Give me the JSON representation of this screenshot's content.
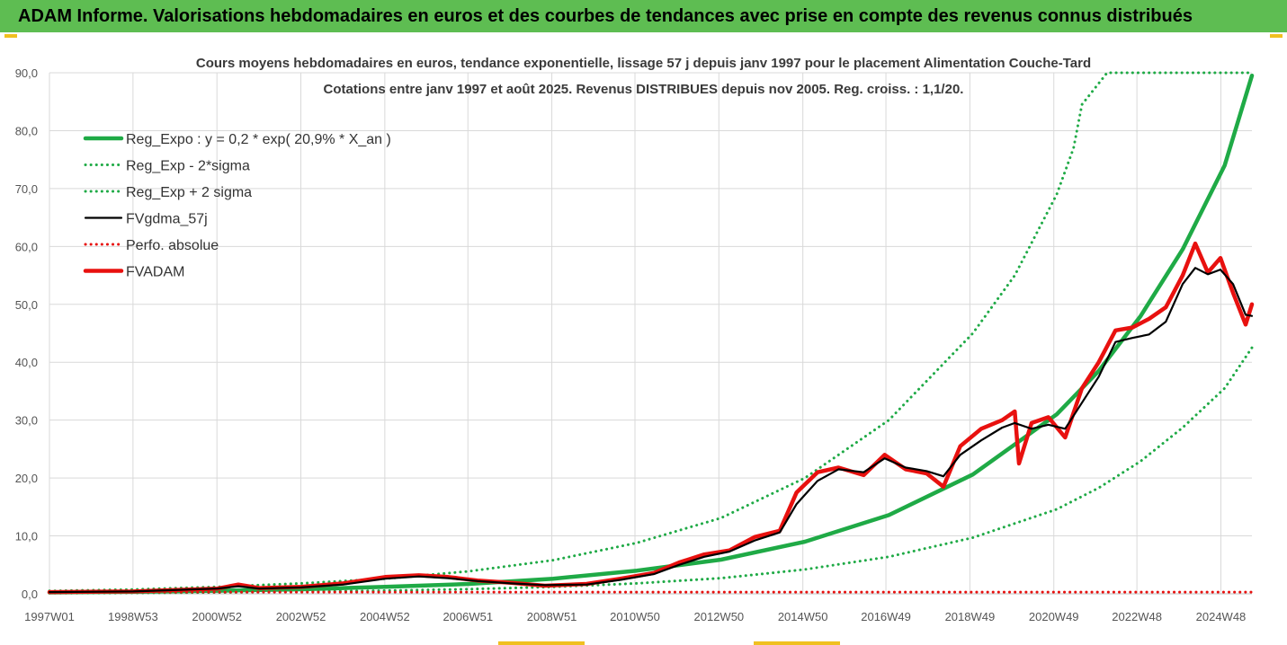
{
  "banner": {
    "text": "ADAM Informe. Valorisations hebdomadaires en euros et des courbes de tendances avec prise en compte des revenus connus distribués"
  },
  "colors": {
    "banner_bg": "#5ebd52",
    "reg_expo": "#1faa46",
    "fvgdma": "#000000",
    "fvadam": "#e8110f",
    "perfo": "#e8110f",
    "grid": "#d9d9d9"
  },
  "chart_data": {
    "type": "line",
    "title": "Cours moyens hebdomadaires en euros, tendance exponentielle, lissage 57 j depuis janv 1997 pour le placement Alimentation Couche-Tard",
    "subtitle": "Cotations entre janv 1997 et août 2025. Revenus DISTRIBUES depuis nov 2005. Reg. croiss. : 1,1/20.",
    "xlabel": "",
    "ylabel": "",
    "x_range": [
      1997.0,
      2025.65
    ],
    "ylim": [
      0,
      90
    ],
    "y_ticks": [
      "0,0",
      "10,0",
      "20,0",
      "30,0",
      "40,0",
      "50,0",
      "60,0",
      "70,0",
      "80,0",
      "90,0"
    ],
    "x_ticks": [
      {
        "label": "1997W01",
        "x": 1997.0
      },
      {
        "label": "1998W53",
        "x": 1998.99
      },
      {
        "label": "2000W52",
        "x": 2000.99
      },
      {
        "label": "2002W52",
        "x": 2002.99
      },
      {
        "label": "2004W52",
        "x": 2004.99
      },
      {
        "label": "2006W51",
        "x": 2006.97
      },
      {
        "label": "2008W51",
        "x": 2008.97
      },
      {
        "label": "2010W50",
        "x": 2010.95
      },
      {
        "label": "2012W50",
        "x": 2012.95
      },
      {
        "label": "2014W50",
        "x": 2014.95
      },
      {
        "label": "2016W49",
        "x": 2016.93
      },
      {
        "label": "2018W49",
        "x": 2018.93
      },
      {
        "label": "2020W49",
        "x": 2020.93
      },
      {
        "label": "2022W48",
        "x": 2022.91
      },
      {
        "label": "2024W48",
        "x": 2024.91
      }
    ],
    "grid": true,
    "legend_position": "top-left",
    "series": [
      {
        "name": "Reg_Expo : y = 0,2 * exp( 20,9% *  X_an )",
        "style": "solid-thick",
        "color": "#1faa46",
        "x": [
          1997.0,
          1999.0,
          2001.0,
          2003.0,
          2005.0,
          2007.0,
          2009.0,
          2011.0,
          2013.0,
          2015.0,
          2017.0,
          2019.0,
          2021.0,
          2022.0,
          2023.0,
          2024.0,
          2025.0,
          2025.65
        ],
        "y": [
          0.23,
          0.35,
          0.52,
          0.78,
          1.2,
          1.7,
          2.6,
          4.0,
          5.9,
          9.0,
          13.6,
          20.6,
          31.0,
          38.5,
          48.0,
          59.5,
          74.0,
          89.5
        ]
      },
      {
        "name": "Reg_Exp - 2*sigma",
        "style": "dotted",
        "color": "#1faa46",
        "x": [
          1997.0,
          1999.0,
          2001.0,
          2003.0,
          2005.0,
          2007.0,
          2009.0,
          2011.0,
          2013.0,
          2015.0,
          2017.0,
          2019.0,
          2021.0,
          2022.0,
          2023.0,
          2024.0,
          2025.0,
          2025.65
        ],
        "y": [
          0.11,
          0.16,
          0.24,
          0.36,
          0.54,
          0.8,
          1.2,
          1.8,
          2.7,
          4.2,
          6.4,
          9.7,
          14.6,
          18.3,
          22.9,
          28.7,
          35.5,
          42.5
        ]
      },
      {
        "name": "Reg_Exp + 2 sigma",
        "style": "dotted",
        "color": "#1faa46",
        "x": [
          1997.0,
          1999.0,
          2001.0,
          2003.0,
          2005.0,
          2007.0,
          2009.0,
          2011.0,
          2013.0,
          2015.0,
          2017.0,
          2019.0,
          2020.0,
          2021.0,
          2021.4,
          2021.6,
          2022.2,
          2025.65
        ],
        "y": [
          0.5,
          0.75,
          1.2,
          1.8,
          2.6,
          3.9,
          5.8,
          8.8,
          13.1,
          20.0,
          30.0,
          45.0,
          55.0,
          69.0,
          77.0,
          84.5,
          90.0,
          90.0
        ]
      },
      {
        "name": "FVgdma_57j",
        "style": "solid",
        "color": "#000000",
        "x": [
          1997.0,
          1999.0,
          2001.0,
          2001.5,
          2002.0,
          2003.0,
          2004.0,
          2005.0,
          2005.8,
          2006.5,
          2007.2,
          2008.0,
          2008.8,
          2009.8,
          2010.6,
          2011.4,
          2012.0,
          2012.6,
          2013.2,
          2013.8,
          2014.4,
          2014.8,
          2015.3,
          2015.8,
          2016.4,
          2016.9,
          2017.4,
          2017.9,
          2018.3,
          2018.7,
          2019.2,
          2019.7,
          2020.0,
          2020.4,
          2020.8,
          2021.2,
          2021.6,
          2022.0,
          2022.4,
          2022.8,
          2023.2,
          2023.6,
          2024.0,
          2024.3,
          2024.6,
          2024.9,
          2025.2,
          2025.5,
          2025.65
        ],
        "y": [
          0.3,
          0.4,
          0.9,
          1.3,
          0.9,
          1.1,
          1.6,
          2.6,
          3.0,
          2.7,
          2.2,
          1.8,
          1.5,
          1.6,
          2.4,
          3.4,
          5.0,
          6.4,
          7.3,
          9.2,
          10.6,
          15.5,
          19.5,
          21.5,
          21.0,
          23.4,
          21.8,
          21.2,
          20.3,
          24.0,
          26.5,
          28.7,
          29.5,
          28.5,
          29.2,
          28.5,
          33.0,
          37.5,
          43.5,
          44.2,
          44.8,
          47.0,
          53.5,
          56.3,
          55.2,
          56.0,
          53.5,
          48.2,
          48.0
        ]
      },
      {
        "name": "Perfo. absolue",
        "style": "dotted",
        "color": "#e8110f",
        "x": [
          1997.0,
          2025.65
        ],
        "y": [
          0.3,
          0.3
        ]
      },
      {
        "name": "FVADAM",
        "style": "solid-thick",
        "color": "#e8110f",
        "x": [
          1997.0,
          1999.0,
          2001.0,
          2001.5,
          2002.0,
          2003.0,
          2004.0,
          2005.0,
          2005.8,
          2006.5,
          2007.2,
          2008.0,
          2008.8,
          2009.8,
          2010.6,
          2011.4,
          2012.0,
          2012.6,
          2013.2,
          2013.8,
          2014.4,
          2014.8,
          2015.3,
          2015.8,
          2016.4,
          2016.9,
          2017.4,
          2017.9,
          2018.3,
          2018.7,
          2019.2,
          2019.7,
          2020.0,
          2020.1,
          2020.4,
          2020.8,
          2021.2,
          2021.6,
          2022.0,
          2022.4,
          2022.8,
          2023.2,
          2023.6,
          2024.0,
          2024.3,
          2024.6,
          2024.9,
          2025.2,
          2025.5,
          2025.65
        ],
        "y": [
          0.3,
          0.4,
          0.9,
          1.6,
          1.0,
          1.2,
          1.8,
          2.9,
          3.2,
          2.9,
          2.3,
          1.9,
          1.4,
          1.7,
          2.6,
          3.6,
          5.4,
          6.8,
          7.5,
          9.8,
          10.9,
          17.5,
          21.0,
          21.8,
          20.5,
          24.0,
          21.5,
          20.8,
          18.5,
          25.5,
          28.5,
          30.0,
          31.5,
          22.5,
          29.5,
          30.5,
          27.0,
          35.5,
          40.0,
          45.5,
          46.0,
          47.5,
          49.5,
          55.0,
          60.5,
          55.5,
          58.0,
          52.0,
          46.5,
          50.0
        ]
      }
    ]
  }
}
